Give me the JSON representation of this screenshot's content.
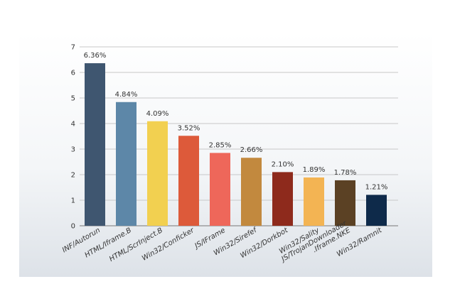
{
  "chart_data": {
    "type": "bar",
    "title": "",
    "xlabel": "",
    "ylabel": "",
    "ylim": [
      0,
      7
    ],
    "yticks": [
      0,
      1,
      2,
      3,
      4,
      5,
      6,
      7
    ],
    "grid": true,
    "categories": [
      "INF/Autorun",
      "HTML/Iframe.B",
      "HTML/ScrInject.B",
      "Win32/Conficker",
      "JS/IFrame",
      "Win32/Sirefef",
      "Win32/Dorkbot",
      "Win32/Sality",
      "JS/TrojanDownloader.Iframe.NKE",
      "Win32/Ramnit"
    ],
    "values": [
      6.36,
      4.84,
      4.09,
      3.52,
      2.85,
      2.66,
      2.1,
      1.89,
      1.78,
      1.21
    ],
    "data_labels": [
      "6.36%",
      "4.84%",
      "4.09%",
      "3.52%",
      "2.85%",
      "2.66%",
      "2.10%",
      "1.89%",
      "1.78%",
      "1.21%"
    ],
    "colors": [
      "#3f5670",
      "#5d87a8",
      "#f2d050",
      "#dd5a3a",
      "#ee675a",
      "#c2893e",
      "#8e2a1c",
      "#f3b453",
      "#5b4124",
      "#0e2a4a"
    ]
  }
}
